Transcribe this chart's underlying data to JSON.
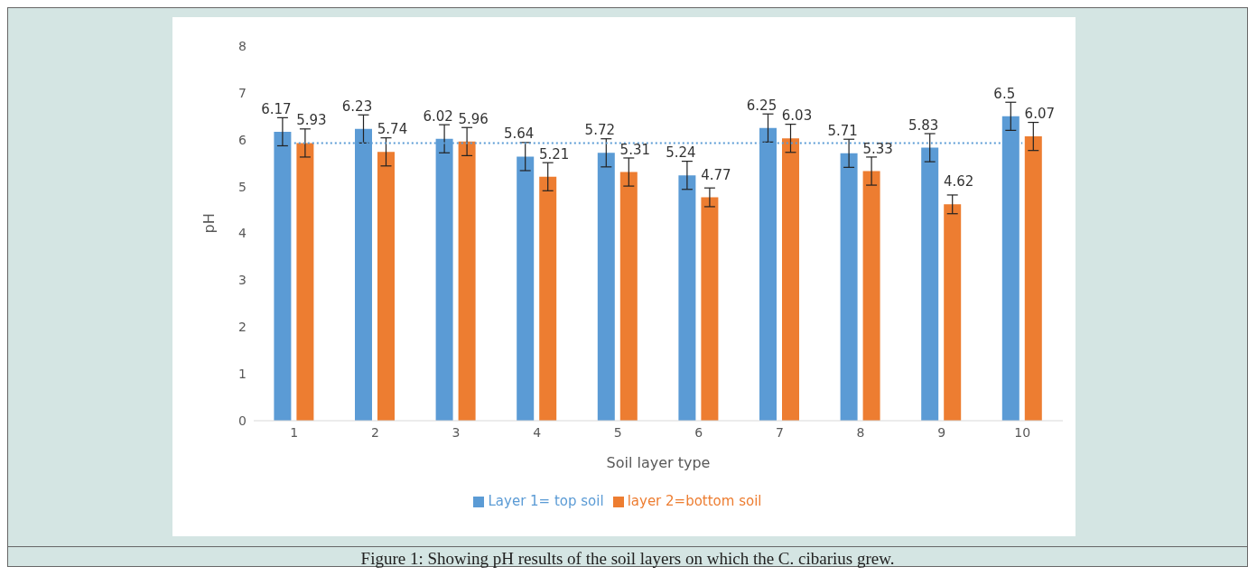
{
  "chart_data": {
    "type": "bar",
    "xlabel": "Soil layer type",
    "ylabel": "pH",
    "categories": [
      "1",
      "2",
      "3",
      "4",
      "5",
      "6",
      "7",
      "8",
      "9",
      "10"
    ],
    "series": [
      {
        "name": "Layer 1= top soil",
        "color": "#5b9bd5",
        "values": [
          6.17,
          6.23,
          6.02,
          5.64,
          5.72,
          5.24,
          6.25,
          5.71,
          5.83,
          6.5
        ],
        "errors": [
          0.3,
          0.3,
          0.3,
          0.3,
          0.3,
          0.3,
          0.3,
          0.3,
          0.3,
          0.3
        ],
        "value_labels": [
          "6.17",
          "6.23",
          "6.02",
          "5.64",
          "5.72",
          "5.24",
          "6.25",
          "5.71",
          "5.83",
          "6.5"
        ]
      },
      {
        "name": "layer 2=bottom soil",
        "color": "#ed7d31",
        "values": [
          5.93,
          5.74,
          5.96,
          5.21,
          5.31,
          4.77,
          6.03,
          5.33,
          4.62,
          6.07
        ],
        "errors": [
          0.3,
          0.3,
          0.3,
          0.3,
          0.3,
          0.2,
          0.3,
          0.3,
          0.2,
          0.3
        ],
        "value_labels": [
          "5.93",
          "5.74",
          "5.96",
          "5.21",
          "5.31",
          "4.77",
          "6.03",
          "5.33",
          "4.62",
          "6.07"
        ]
      },
      {
        "type": "line",
        "color": "#5b9bd5",
        "line_style": "dotted",
        "values": [
          5.93,
          5.93,
          5.93,
          5.93,
          5.93,
          5.93,
          5.93,
          5.93,
          5.93,
          5.93
        ]
      }
    ],
    "ylim": [
      0,
      8
    ],
    "yticks": [
      0,
      1,
      2,
      3,
      4,
      5,
      6,
      7,
      8
    ],
    "grid": false,
    "legend": "bottom",
    "marker": "none",
    "annotations": [
      "Figure 1: Showing pH results of the soil layers on which the C. cibarius grew."
    ]
  }
}
